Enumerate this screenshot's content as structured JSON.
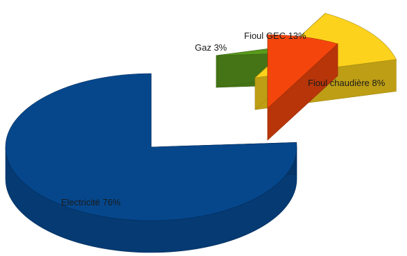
{
  "chart_data": {
    "type": "pie",
    "style": "3d-exploded",
    "title": "",
    "legend": "none",
    "slices": [
      {
        "label": "Electricité",
        "value": 76,
        "display": "Electricité 76%",
        "color": "#06478c"
      },
      {
        "label": "Gaz",
        "value": 3,
        "display": "Gaz 3%",
        "color": "#5a9a1c"
      },
      {
        "label": "Fioul GEC",
        "value": 13,
        "display": "Fioul GEC 13%",
        "color": "#fdd21c"
      },
      {
        "label": "Fioul chaudière",
        "value": 8,
        "display": "Fioul chaudière 8%",
        "color": "#f4460c"
      }
    ]
  }
}
